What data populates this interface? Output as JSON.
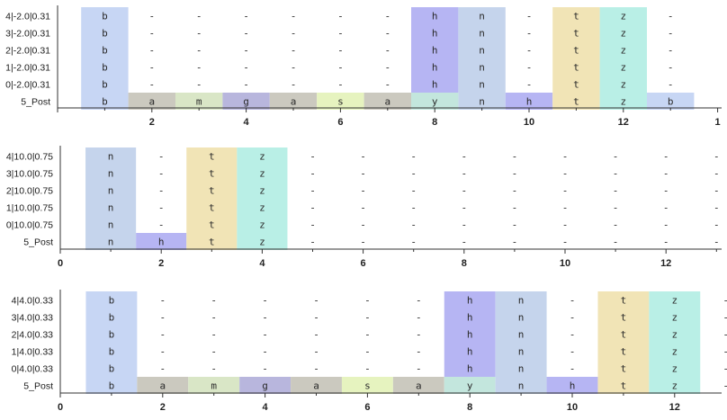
{
  "colors": {
    "b": "#c7d6f4",
    "a": "#cbc9bf",
    "m": "#d9e6c6",
    "g": "#b8b6dd",
    "s": "#e6f3bf",
    "y": "#c3e6dd",
    "h": "#b6b5f3",
    "n": "#c5d4ec",
    "t": "#f1e4b6",
    "z": "#b9efe6",
    "-": "none"
  },
  "chart_data": [
    {
      "type": "table",
      "x_ticks": [
        "2",
        "4",
        "6",
        "8",
        "10",
        "12",
        "1"
      ],
      "rows": [
        {
          "label": "4|-2.0|0.31",
          "cells": [
            "b",
            "-",
            "-",
            "-",
            "-",
            "-",
            "-",
            "h",
            "n",
            "-",
            "t",
            "z",
            "-"
          ]
        },
        {
          "label": "3|-2.0|0.31",
          "cells": [
            "b",
            "-",
            "-",
            "-",
            "-",
            "-",
            "-",
            "h",
            "n",
            "-",
            "t",
            "z",
            "-"
          ]
        },
        {
          "label": "2|-2.0|0.31",
          "cells": [
            "b",
            "-",
            "-",
            "-",
            "-",
            "-",
            "-",
            "h",
            "n",
            "-",
            "t",
            "z",
            "-"
          ]
        },
        {
          "label": "1|-2.0|0.31",
          "cells": [
            "b",
            "-",
            "-",
            "-",
            "-",
            "-",
            "-",
            "h",
            "n",
            "-",
            "t",
            "z",
            "-"
          ]
        },
        {
          "label": "0|-2.0|0.31",
          "cells": [
            "b",
            "-",
            "-",
            "-",
            "-",
            "-",
            "-",
            "h",
            "n",
            "-",
            "t",
            "z",
            "-"
          ]
        },
        {
          "label": "5_Post",
          "cells": [
            "b",
            "a",
            "m",
            "g",
            "a",
            "s",
            "a",
            "y",
            "n",
            "h",
            "t",
            "z",
            "b"
          ]
        }
      ]
    },
    {
      "type": "table",
      "x_ticks": [
        "0",
        "2",
        "4",
        "6",
        "8",
        "10",
        "12"
      ],
      "rows": [
        {
          "label": "4|10.0|0.75",
          "cells": [
            "n",
            "-",
            "t",
            "z",
            "-",
            "-",
            "-",
            "-",
            "-",
            "-",
            "-",
            "-",
            "-"
          ]
        },
        {
          "label": "3|10.0|0.75",
          "cells": [
            "n",
            "-",
            "t",
            "z",
            "-",
            "-",
            "-",
            "-",
            "-",
            "-",
            "-",
            "-",
            "-"
          ]
        },
        {
          "label": "2|10.0|0.75",
          "cells": [
            "n",
            "-",
            "t",
            "z",
            "-",
            "-",
            "-",
            "-",
            "-",
            "-",
            "-",
            "-",
            "-"
          ]
        },
        {
          "label": "1|10.0|0.75",
          "cells": [
            "n",
            "-",
            "t",
            "z",
            "-",
            "-",
            "-",
            "-",
            "-",
            "-",
            "-",
            "-",
            "-"
          ]
        },
        {
          "label": "0|10.0|0.75",
          "cells": [
            "n",
            "-",
            "t",
            "z",
            "-",
            "-",
            "-",
            "-",
            "-",
            "-",
            "-",
            "-",
            "-"
          ]
        },
        {
          "label": "5_Post",
          "cells": [
            "n",
            "h",
            "t",
            "z",
            "-",
            "-",
            "-",
            "-",
            "-",
            "-",
            "-",
            "-",
            "-"
          ]
        }
      ]
    },
    {
      "type": "table",
      "x_ticks": [
        "0",
        "2",
        "4",
        "6",
        "8",
        "10",
        "12"
      ],
      "rows": [
        {
          "label": "4|4.0|0.33",
          "cells": [
            "b",
            "-",
            "-",
            "-",
            "-",
            "-",
            "-",
            "h",
            "n",
            "-",
            "t",
            "z",
            "-"
          ]
        },
        {
          "label": "3|4.0|0.33",
          "cells": [
            "b",
            "-",
            "-",
            "-",
            "-",
            "-",
            "-",
            "h",
            "n",
            "-",
            "t",
            "z",
            "-"
          ]
        },
        {
          "label": "2|4.0|0.33",
          "cells": [
            "b",
            "-",
            "-",
            "-",
            "-",
            "-",
            "-",
            "h",
            "n",
            "-",
            "t",
            "z",
            "-"
          ]
        },
        {
          "label": "1|4.0|0.33",
          "cells": [
            "b",
            "-",
            "-",
            "-",
            "-",
            "-",
            "-",
            "h",
            "n",
            "-",
            "t",
            "z",
            "-"
          ]
        },
        {
          "label": "0|4.0|0.33",
          "cells": [
            "b",
            "-",
            "-",
            "-",
            "-",
            "-",
            "-",
            "h",
            "n",
            "-",
            "t",
            "z",
            "-"
          ]
        },
        {
          "label": "5_Post",
          "cells": [
            "b",
            "a",
            "m",
            "g",
            "a",
            "s",
            "a",
            "y",
            "n",
            "h",
            "t",
            "z",
            "-"
          ]
        }
      ]
    }
  ]
}
